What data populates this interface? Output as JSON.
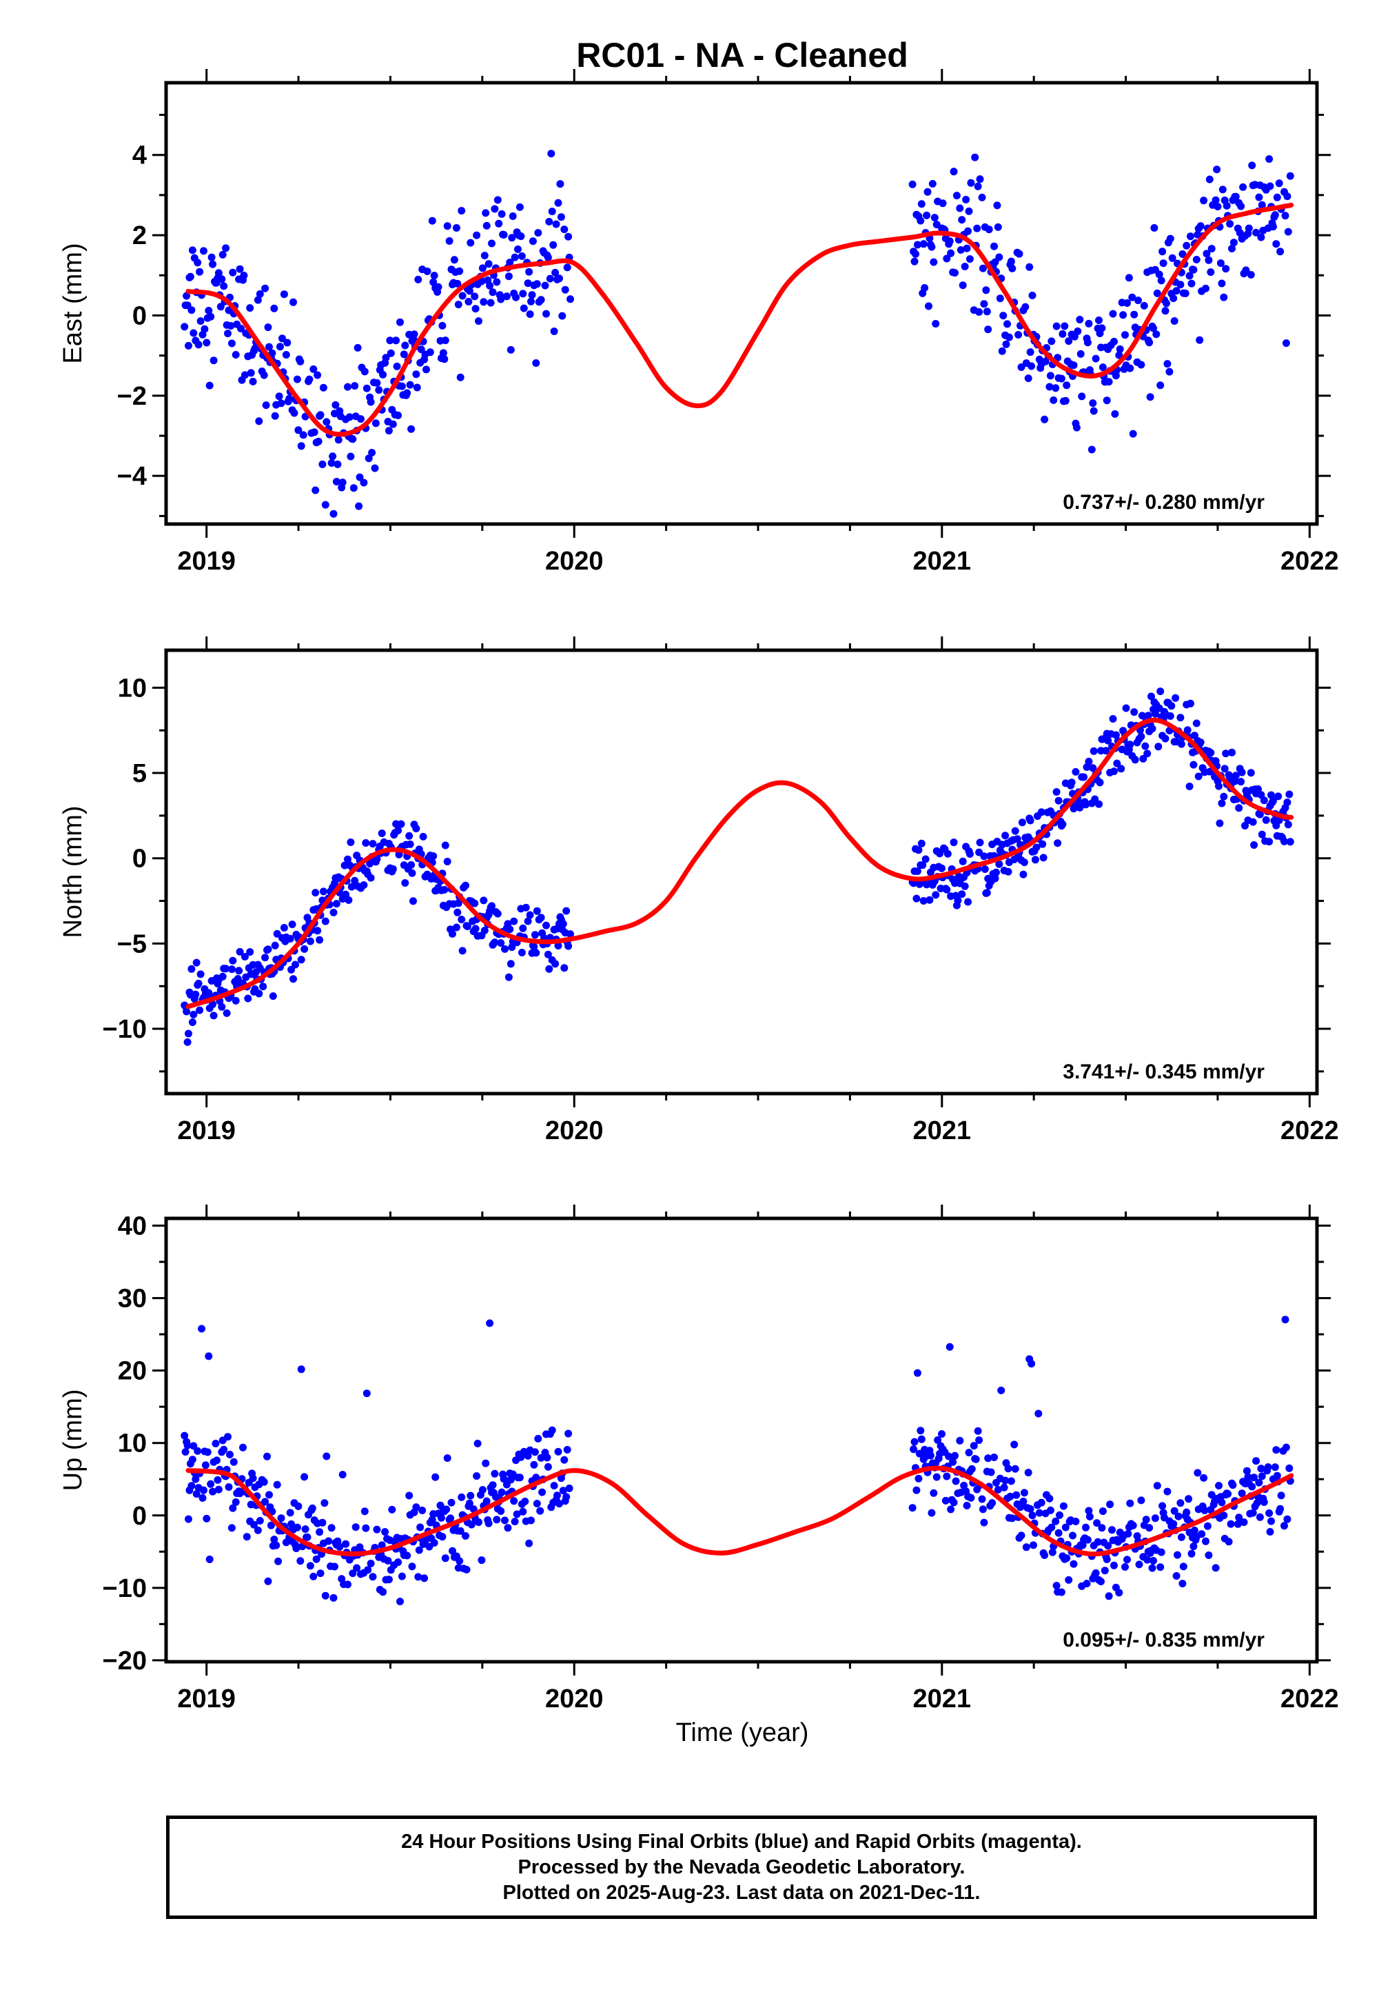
{
  "chart_data": {
    "title": "RC01  - NA - Cleaned",
    "type": "scatter",
    "xlabel": "Time (year)",
    "xlim": [
      2018.89,
      2022.02
    ],
    "x_ticks": [
      2019,
      2020,
      2021,
      2022
    ],
    "x_tick_labels": [
      "2019",
      "2020",
      "2021",
      "2022"
    ],
    "colors": {
      "final_orbits": "#0000ff",
      "rapid_orbits": "#ff00ff",
      "model": "#ff0000"
    },
    "data_segments": [
      [
        2018.94,
        2019.99
      ],
      [
        2020.92,
        2021.95
      ]
    ],
    "panels": [
      {
        "name": "east",
        "ylabel": "East (mm)",
        "ylim": [
          -5.2,
          5.8
        ],
        "y_ticks": [
          -4,
          -2,
          0,
          2,
          4
        ],
        "y_tick_labels": [
          "−4",
          "−2",
          "0",
          "2",
          "4"
        ],
        "rate_label": "0.737+/- 0.280 mm/yr",
        "model": {
          "x": [
            2018.95,
            2019.05,
            2019.15,
            2019.25,
            2019.33,
            2019.42,
            2019.5,
            2019.58,
            2019.67,
            2019.75,
            2019.83,
            2019.92,
            2020.0,
            2020.08,
            2020.17,
            2020.25,
            2020.33,
            2020.4,
            2020.5,
            2020.58,
            2020.67,
            2020.75,
            2020.83,
            2020.92,
            2021.0,
            2021.08,
            2021.17,
            2021.25,
            2021.33,
            2021.42,
            2021.5,
            2021.58,
            2021.67,
            2021.75,
            2021.83,
            2021.92,
            2021.95
          ],
          "y": [
            0.6,
            0.4,
            -0.8,
            -2.1,
            -2.9,
            -2.8,
            -1.9,
            -0.6,
            0.5,
            1.0,
            1.2,
            1.3,
            1.3,
            0.5,
            -0.7,
            -1.8,
            -2.25,
            -1.9,
            -0.4,
            0.8,
            1.5,
            1.75,
            1.85,
            1.95,
            2.05,
            1.8,
            0.6,
            -0.6,
            -1.3,
            -1.5,
            -1.0,
            0.2,
            1.5,
            2.3,
            2.55,
            2.7,
            2.75
          ]
        }
      },
      {
        "name": "north",
        "ylabel": "North (mm)",
        "ylim": [
          -13.8,
          12.2
        ],
        "y_ticks": [
          -10,
          -5,
          0,
          5,
          10
        ],
        "y_tick_labels": [
          "−10",
          "−5",
          "0",
          "5",
          "10"
        ],
        "rate_label": "3.741+/- 0.345 mm/yr",
        "model": {
          "x": [
            2018.95,
            2019.05,
            2019.15,
            2019.25,
            2019.33,
            2019.42,
            2019.5,
            2019.58,
            2019.67,
            2019.75,
            2019.83,
            2019.92,
            2020.0,
            2020.08,
            2020.17,
            2020.25,
            2020.33,
            2020.42,
            2020.5,
            2020.58,
            2020.67,
            2020.75,
            2020.83,
            2020.92,
            2021.0,
            2021.08,
            2021.17,
            2021.25,
            2021.33,
            2021.42,
            2021.5,
            2021.58,
            2021.67,
            2021.75,
            2021.83,
            2021.92,
            2021.95
          ],
          "y": [
            -8.7,
            -8.0,
            -7.0,
            -5.0,
            -2.5,
            -0.3,
            0.5,
            0.0,
            -1.8,
            -3.6,
            -4.6,
            -4.9,
            -4.7,
            -4.3,
            -3.8,
            -2.5,
            0.0,
            2.5,
            4.0,
            4.4,
            3.3,
            1.2,
            -0.5,
            -1.2,
            -1.0,
            -0.5,
            0.1,
            1.0,
            2.8,
            5.0,
            7.2,
            8.1,
            7.0,
            5.0,
            3.3,
            2.5,
            2.4
          ]
        }
      },
      {
        "name": "up",
        "ylabel": "Up (mm)",
        "ylim": [
          -20.2,
          41.0
        ],
        "y_ticks": [
          -20,
          -10,
          0,
          10,
          20,
          30,
          40
        ],
        "y_tick_labels": [
          "−20",
          "−10",
          "0",
          "10",
          "20",
          "30",
          "40"
        ],
        "rate_label": "0.095+/- 0.835 mm/yr",
        "model": {
          "x": [
            2018.95,
            2019.05,
            2019.1,
            2019.2,
            2019.3,
            2019.4,
            2019.5,
            2019.6,
            2019.7,
            2019.8,
            2019.9,
            2020.0,
            2020.1,
            2020.2,
            2020.3,
            2020.4,
            2020.5,
            2020.6,
            2020.7,
            2020.8,
            2020.9,
            2021.0,
            2021.1,
            2021.2,
            2021.3,
            2021.4,
            2021.5,
            2021.6,
            2021.7,
            2021.8,
            2021.9,
            2021.95
          ],
          "y": [
            6.2,
            5.8,
            4.0,
            -1.5,
            -4.5,
            -5.3,
            -4.5,
            -2.5,
            -0.5,
            2.0,
            4.5,
            6.2,
            4.5,
            0.0,
            -4.0,
            -5.2,
            -4.0,
            -2.3,
            -0.5,
            2.5,
            5.5,
            6.5,
            4.5,
            0.5,
            -3.5,
            -5.3,
            -4.5,
            -2.8,
            -0.8,
            1.8,
            4.2,
            5.5
          ]
        }
      }
    ]
  },
  "footer": {
    "line1": "24 Hour Positions Using Final Orbits (blue) and Rapid Orbits (magenta).",
    "line2": "Processed by the Nevada Geodetic Laboratory.",
    "line3": "Plotted on 2025-Aug-23. Last data on 2021-Dec-11."
  }
}
